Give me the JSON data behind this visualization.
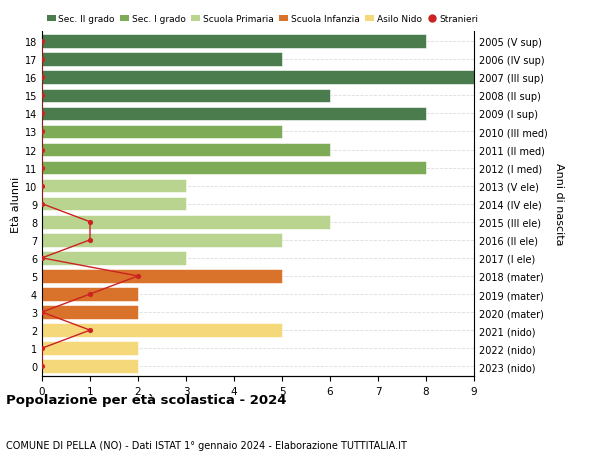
{
  "ages": [
    18,
    17,
    16,
    15,
    14,
    13,
    12,
    11,
    10,
    9,
    8,
    7,
    6,
    5,
    4,
    3,
    2,
    1,
    0
  ],
  "right_labels": [
    "2005 (V sup)",
    "2006 (IV sup)",
    "2007 (III sup)",
    "2008 (II sup)",
    "2009 (I sup)",
    "2010 (III med)",
    "2011 (II med)",
    "2012 (I med)",
    "2013 (V ele)",
    "2014 (IV ele)",
    "2015 (III ele)",
    "2016 (II ele)",
    "2017 (I ele)",
    "2018 (mater)",
    "2019 (mater)",
    "2020 (mater)",
    "2021 (nido)",
    "2022 (nido)",
    "2023 (nido)"
  ],
  "bar_values": [
    8,
    5,
    9,
    6,
    8,
    5,
    6,
    8,
    3,
    3,
    6,
    5,
    3,
    5,
    2,
    2,
    5,
    2,
    2
  ],
  "bar_colors": [
    "#4a7c4e",
    "#4a7c4e",
    "#4a7c4e",
    "#4a7c4e",
    "#4a7c4e",
    "#7eab55",
    "#7eab55",
    "#7eab55",
    "#b8d48e",
    "#b8d48e",
    "#b8d48e",
    "#b8d48e",
    "#b8d48e",
    "#d9722a",
    "#d9722a",
    "#d9722a",
    "#f5d87a",
    "#f5d87a",
    "#f5d87a"
  ],
  "stranieri_values": [
    0,
    0,
    0,
    0,
    0,
    0,
    0,
    0,
    0,
    0,
    1,
    1,
    0,
    2,
    1,
    0,
    1,
    0,
    0
  ],
  "legend_labels": [
    "Sec. II grado",
    "Sec. I grado",
    "Scuola Primaria",
    "Scuola Infanzia",
    "Asilo Nido",
    "Stranieri"
  ],
  "legend_colors": [
    "#4a7c4e",
    "#7eab55",
    "#b8d48e",
    "#d9722a",
    "#f5d87a",
    "#cc2222"
  ],
  "ylabel_left": "Età alunni",
  "ylabel_right": "Anni di nascita",
  "title": "Popolazione per età scolastica - 2024",
  "subtitle": "COMUNE DI PELLA (NO) - Dati ISTAT 1° gennaio 2024 - Elaborazione TUTTITALIA.IT",
  "xlim": [
    0,
    9
  ],
  "background_color": "#ffffff",
  "stranieri_color": "#cc2222",
  "grid_color": "#dddddd"
}
